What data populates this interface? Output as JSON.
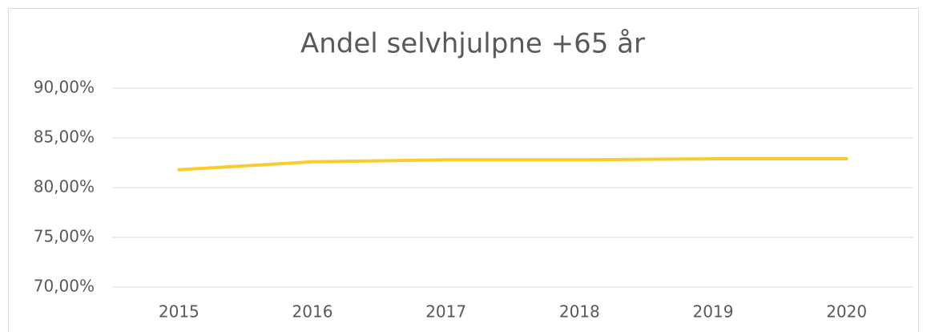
{
  "chart_data": {
    "type": "line",
    "title": "Andel selvhjulpne +65 år",
    "categories": [
      "2015",
      "2016",
      "2017",
      "2018",
      "2019",
      "2020"
    ],
    "series": [
      {
        "name": "Andel selvhjulpne +65 år",
        "color": "#f9cb2e",
        "values": [
          81.8,
          82.6,
          82.8,
          82.8,
          82.9,
          82.9
        ]
      }
    ],
    "ylim": [
      70,
      90
    ],
    "yticks": [
      {
        "value": 70,
        "label": "70,00%"
      },
      {
        "value": 75,
        "label": "75,00%"
      },
      {
        "value": 80,
        "label": "80,00%"
      },
      {
        "value": 85,
        "label": "85,00%"
      },
      {
        "value": 90,
        "label": "90,00%"
      }
    ],
    "grid": true
  }
}
